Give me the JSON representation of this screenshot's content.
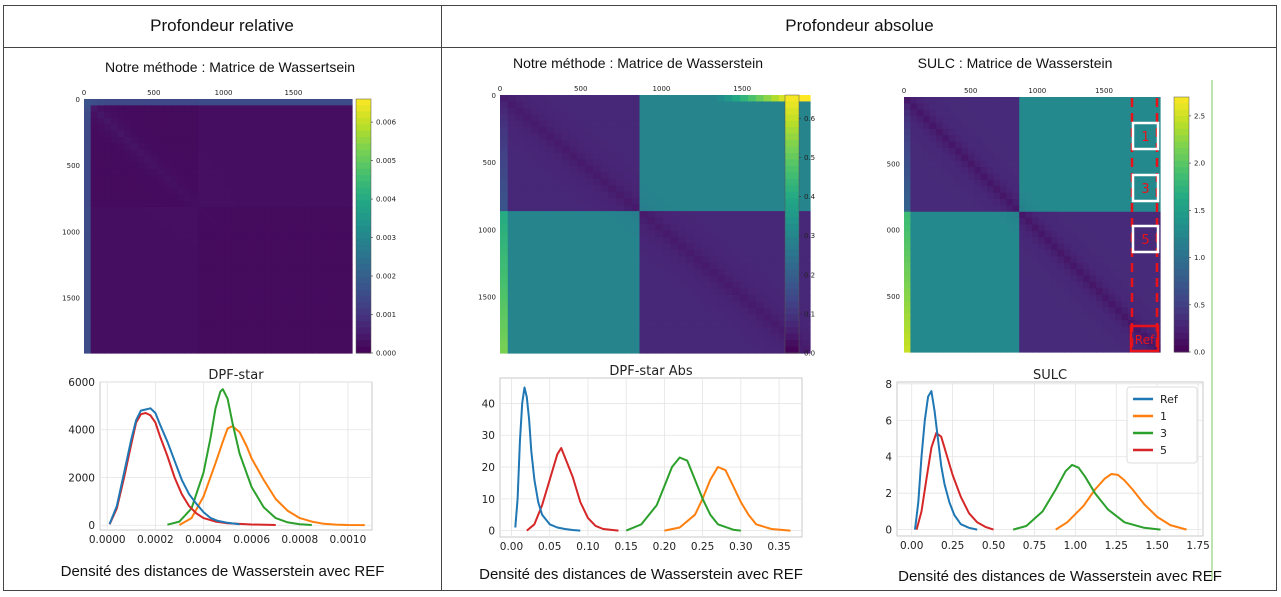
{
  "header": {
    "relative": "Profondeur relative",
    "absolute": "Profondeur absolue"
  },
  "panels": [
    {
      "matrix_title": "Notre méthode : Matrice de Wassertsein",
      "caption": "Densité des distances de Wasserstein avec REF"
    },
    {
      "matrix_title": "Notre méthode : Matrice de Wasserstein",
      "caption": "Densité des distances de Wasserstein avec REF"
    },
    {
      "matrix_title": "SULC : Matrice de Wasserstein",
      "caption": "Densité des distances de Wasserstein avec REF",
      "boxes": [
        "1",
        "3",
        "5",
        "Ref"
      ]
    }
  ],
  "colors": {
    "Ref": "#1f77b4",
    "1": "#ff7f0e",
    "3": "#2ca02c",
    "5": "#d62728",
    "highlight": "#e8121b"
  },
  "chart_data": [
    {
      "type": "heatmap",
      "colormap": "viridis",
      "x_ticks": [
        "0",
        "500",
        "1000",
        "1500"
      ],
      "y_ticks": [
        "0",
        "500",
        "1000",
        "1500"
      ],
      "colorbar_ticks": [
        "0.000",
        "0.001",
        "0.002",
        "0.003",
        "0.004",
        "0.005",
        "0.006"
      ],
      "colorbar_range": [
        0,
        0.0066
      ]
    },
    {
      "type": "heatmap",
      "colormap": "viridis",
      "x_ticks": [
        "0",
        "500",
        "1000",
        "1500"
      ],
      "y_ticks": [
        "0",
        "500",
        "1000",
        "1500"
      ],
      "colorbar_ticks": [
        "0.0",
        "0.1",
        "0.2",
        "0.3",
        "0.4",
        "0.5",
        "0.6"
      ],
      "colorbar_range": [
        0,
        0.66
      ]
    },
    {
      "type": "heatmap",
      "colormap": "viridis",
      "x_ticks": [
        "0",
        "500",
        "1000",
        "1500"
      ],
      "y_ticks": [
        "500",
        "000",
        "500"
      ],
      "colorbar_ticks": [
        "0.0",
        "0.5",
        "1.0",
        "1.5",
        "2.0",
        "2.5"
      ],
      "colorbar_range": [
        0,
        2.7
      ]
    },
    {
      "type": "line",
      "title": "DPF-star",
      "xlim": [
        -3e-05,
        0.0011
      ],
      "ylim": [
        -200,
        6000
      ],
      "x_ticks": [
        "0.0000",
        "0.0002",
        "0.0004",
        "0.0006",
        "0.0008",
        "0.0010"
      ],
      "x_tick_values": [
        0,
        0.0002,
        0.0004,
        0.0006,
        0.0008,
        0.001
      ],
      "y_ticks": [
        "0",
        "2000",
        "4000",
        "6000"
      ],
      "y_tick_values": [
        0,
        2000,
        4000,
        6000
      ],
      "grid": true,
      "series": [
        {
          "name": "Ref",
          "x": [
            1e-05,
            4e-05,
            7e-05,
            0.0001,
            0.00012,
            0.00014,
            0.00016,
            0.00018,
            0.0002,
            0.00022,
            0.00025,
            0.00028,
            0.00031,
            0.00034,
            0.00037,
            0.0004,
            0.00043,
            0.00046,
            0.0005,
            0.00055
          ],
          "y": [
            50,
            800,
            2200,
            3600,
            4400,
            4800,
            4850,
            4900,
            4700,
            4200,
            3500,
            2700,
            1900,
            1300,
            900,
            550,
            300,
            180,
            100,
            40
          ]
        },
        {
          "name": "1",
          "x": [
            0.0003,
            0.00035,
            0.0004,
            0.00045,
            0.00048,
            0.0005,
            0.00052,
            0.00055,
            0.00058,
            0.0006,
            0.00065,
            0.0007,
            0.00075,
            0.0008,
            0.00085,
            0.0009,
            0.00095,
            0.001,
            0.00107
          ],
          "y": [
            10,
            300,
            1200,
            2600,
            3500,
            4050,
            4150,
            3900,
            3300,
            2800,
            1900,
            1100,
            600,
            300,
            150,
            60,
            25,
            10,
            5
          ]
        },
        {
          "name": "3",
          "x": [
            0.00025,
            0.0003,
            0.00035,
            0.0004,
            0.00043,
            0.00045,
            0.00047,
            0.00048,
            0.0005,
            0.00052,
            0.00055,
            0.0006,
            0.00065,
            0.0007,
            0.00075,
            0.0008,
            0.00085
          ],
          "y": [
            20,
            150,
            700,
            2200,
            3700,
            4900,
            5600,
            5700,
            5300,
            4300,
            3000,
            1600,
            750,
            300,
            120,
            40,
            10
          ]
        },
        {
          "name": "5",
          "x": [
            1e-05,
            4e-05,
            7e-05,
            0.0001,
            0.00012,
            0.00014,
            0.00016,
            0.00018,
            0.0002,
            0.00022,
            0.00025,
            0.00028,
            0.00031,
            0.00034,
            0.00037,
            0.0004,
            0.00045,
            0.0005,
            0.0006,
            0.0007
          ],
          "y": [
            40,
            700,
            2000,
            3400,
            4300,
            4650,
            4700,
            4600,
            4300,
            3700,
            2900,
            2000,
            1300,
            800,
            500,
            300,
            150,
            80,
            30,
            10
          ]
        }
      ]
    },
    {
      "type": "line",
      "title": "DPF-star Abs",
      "xlim": [
        -0.015,
        0.38
      ],
      "ylim": [
        -2,
        48
      ],
      "x_ticks": [
        "0.00",
        "0.05",
        "0.10",
        "0.15",
        "0.20",
        "0.25",
        "0.30",
        "0.35"
      ],
      "x_tick_values": [
        0,
        0.05,
        0.1,
        0.15,
        0.2,
        0.25,
        0.3,
        0.35
      ],
      "y_ticks": [
        "0",
        "10",
        "20",
        "30",
        "40"
      ],
      "y_tick_values": [
        0,
        10,
        20,
        30,
        40
      ],
      "grid": true,
      "series": [
        {
          "name": "Ref",
          "x": [
            0.005,
            0.008,
            0.011,
            0.014,
            0.017,
            0.02,
            0.023,
            0.026,
            0.03,
            0.035,
            0.04,
            0.05,
            0.06,
            0.07,
            0.08,
            0.09
          ],
          "y": [
            1,
            10,
            28,
            40,
            45,
            42,
            35,
            25,
            16,
            9,
            5,
            2,
            1,
            0.5,
            0.2,
            0
          ]
        },
        {
          "name": "1",
          "x": [
            0.2,
            0.22,
            0.24,
            0.25,
            0.26,
            0.27,
            0.28,
            0.29,
            0.3,
            0.31,
            0.32,
            0.34,
            0.365
          ],
          "y": [
            0,
            1,
            5,
            10,
            16,
            20,
            19,
            14,
            9,
            5,
            2,
            0.5,
            0
          ]
        },
        {
          "name": "3",
          "x": [
            0.15,
            0.17,
            0.19,
            0.2,
            0.21,
            0.22,
            0.23,
            0.24,
            0.25,
            0.26,
            0.27,
            0.29,
            0.3
          ],
          "y": [
            0,
            2,
            8,
            14,
            20,
            23,
            22,
            16,
            10,
            5,
            2,
            0.3,
            0
          ]
        },
        {
          "name": "5",
          "x": [
            0.02,
            0.03,
            0.04,
            0.05,
            0.06,
            0.065,
            0.07,
            0.08,
            0.09,
            0.1,
            0.11,
            0.12,
            0.14
          ],
          "y": [
            0,
            2,
            8,
            16,
            24,
            26,
            23,
            17,
            9,
            4,
            1.5,
            0.5,
            0
          ]
        }
      ]
    },
    {
      "type": "line",
      "title": "SULC",
      "xlim": [
        -0.09,
        1.78
      ],
      "ylim": [
        -0.35,
        8.1
      ],
      "x_ticks": [
        "0.00",
        "0.25",
        "0.50",
        "0.75",
        "1.00",
        "1.25",
        "1.50",
        "1.75"
      ],
      "x_tick_values": [
        0,
        0.25,
        0.5,
        0.75,
        1,
        1.25,
        1.5,
        1.75
      ],
      "y_ticks": [
        "0",
        "2",
        "4",
        "6",
        "8"
      ],
      "y_tick_values": [
        0,
        2,
        4,
        6,
        8
      ],
      "grid": true,
      "legend": {
        "location": "upper right",
        "entries": [
          "Ref",
          "1",
          "3",
          "5"
        ]
      },
      "series": [
        {
          "name": "Ref",
          "x": [
            0.02,
            0.04,
            0.06,
            0.08,
            0.1,
            0.12,
            0.14,
            0.16,
            0.18,
            0.2,
            0.23,
            0.26,
            0.3,
            0.35,
            0.4
          ],
          "y": [
            0,
            1.5,
            4,
            6,
            7.3,
            7.6,
            6.5,
            5,
            3.5,
            2.5,
            1.5,
            0.8,
            0.3,
            0.1,
            0
          ]
        },
        {
          "name": "1",
          "x": [
            0.88,
            0.95,
            1.05,
            1.12,
            1.18,
            1.22,
            1.26,
            1.3,
            1.35,
            1.42,
            1.5,
            1.58,
            1.68
          ],
          "y": [
            0,
            0.4,
            1.3,
            2.2,
            2.8,
            3.05,
            3,
            2.7,
            2.2,
            1.4,
            0.7,
            0.25,
            0
          ]
        },
        {
          "name": "3",
          "x": [
            0.62,
            0.7,
            0.8,
            0.88,
            0.94,
            0.98,
            1.02,
            1.06,
            1.12,
            1.2,
            1.3,
            1.42,
            1.52
          ],
          "y": [
            0,
            0.2,
            1,
            2.2,
            3.2,
            3.55,
            3.4,
            2.9,
            2,
            1.1,
            0.4,
            0.1,
            0
          ]
        },
        {
          "name": "5",
          "x": [
            0.03,
            0.06,
            0.09,
            0.12,
            0.15,
            0.18,
            0.21,
            0.25,
            0.3,
            0.35,
            0.4,
            0.45,
            0.5
          ],
          "y": [
            0,
            1,
            2.8,
            4.5,
            5.3,
            5.1,
            4.2,
            3,
            1.8,
            0.9,
            0.4,
            0.15,
            0
          ]
        }
      ]
    }
  ]
}
